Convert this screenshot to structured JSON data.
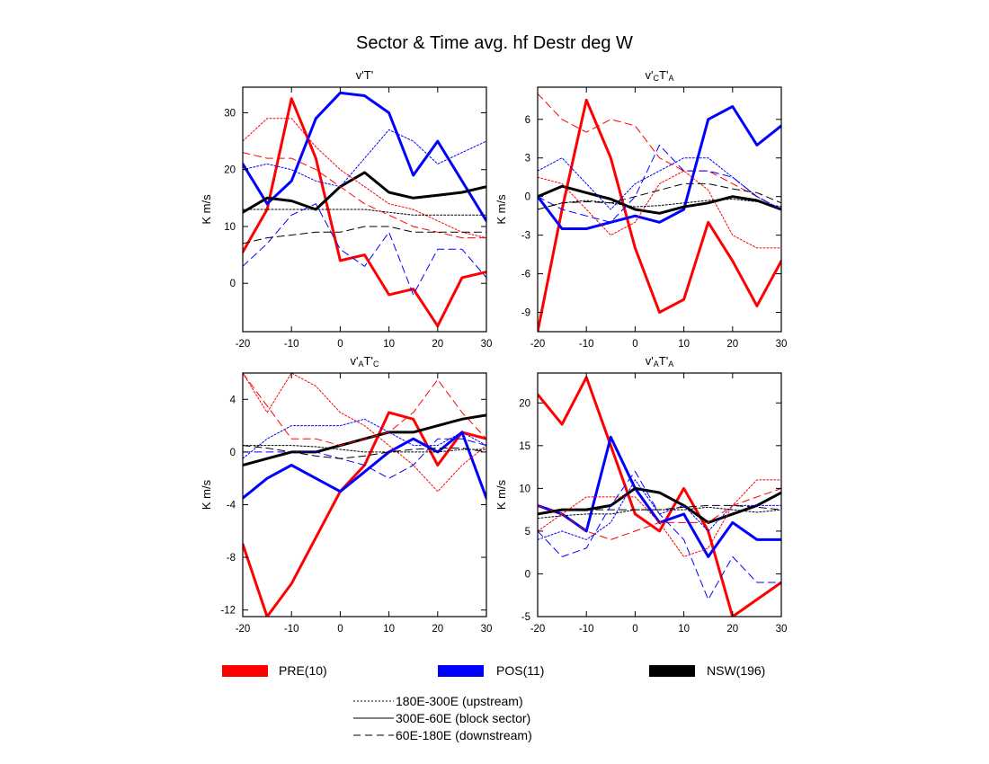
{
  "figure": {
    "title": "Sector & Time avg. hf Destr deg W",
    "legend": {
      "colors": [
        {
          "label": "PRE(10)",
          "color": "#ff0000"
        },
        {
          "label": "POS(11)",
          "color": "#0000ff"
        },
        {
          "label": "NSW(196)",
          "color": "#000000"
        }
      ],
      "styles": [
        {
          "label": "180E-300E (upstream)",
          "style": "dotted"
        },
        {
          "label": "300E-60E (block sector)",
          "style": "solid"
        },
        {
          "label": "60E-180E (downstream)",
          "style": "dashed"
        }
      ]
    }
  },
  "chart_data": [
    {
      "type": "line",
      "title": "v'T'",
      "title_parts": [
        {
          "t": "v'T'",
          "s": "n"
        }
      ],
      "xlabel": "",
      "ylabel": "K m/s",
      "xlim": [
        -20,
        30
      ],
      "ylim": [
        -8.5,
        34.5
      ],
      "xticks": [
        -20,
        -10,
        0,
        10,
        20,
        30
      ],
      "yticks": [
        0,
        10,
        20,
        30
      ],
      "grid": false,
      "x": [
        -20,
        -15,
        -10,
        -5,
        0,
        5,
        10,
        15,
        20,
        25,
        30
      ],
      "series": [
        {
          "color": "#ff0000",
          "style": "solid",
          "values": [
            5.5,
            13,
            32.5,
            22,
            4,
            5,
            -2,
            -1,
            -7.5,
            1,
            2
          ]
        },
        {
          "color": "#0000ff",
          "style": "solid",
          "values": [
            21,
            14,
            18,
            29,
            33.5,
            33,
            30,
            19,
            25,
            18,
            11
          ]
        },
        {
          "color": "#000000",
          "style": "solid",
          "values": [
            12.5,
            15,
            14.5,
            13,
            17,
            19.5,
            16,
            15,
            15.5,
            16,
            17
          ]
        },
        {
          "color": "#ff0000",
          "style": "dotted",
          "values": [
            25,
            29,
            29,
            24,
            20,
            17,
            14,
            13,
            11,
            9,
            8
          ]
        },
        {
          "color": "#0000ff",
          "style": "dotted",
          "values": [
            20,
            21,
            20,
            18,
            17,
            22,
            27,
            25,
            21,
            23,
            25
          ]
        },
        {
          "color": "#000000",
          "style": "dotted",
          "values": [
            13,
            13,
            13,
            13,
            13,
            13,
            12.5,
            12,
            12,
            12,
            12
          ]
        },
        {
          "color": "#ff0000",
          "style": "dashed",
          "values": [
            23,
            22,
            22,
            20,
            17,
            14,
            12,
            10,
            9,
            8,
            8
          ]
        },
        {
          "color": "#0000ff",
          "style": "dashed",
          "values": [
            3,
            7,
            12,
            14,
            6,
            3,
            9,
            -2,
            6,
            6,
            1
          ]
        },
        {
          "color": "#000000",
          "style": "dashed",
          "values": [
            7,
            8,
            8.5,
            9,
            9,
            10,
            10,
            9,
            9,
            9,
            9
          ]
        }
      ]
    },
    {
      "type": "line",
      "title": "v'CT'A",
      "title_parts": [
        {
          "t": "v'",
          "s": "n"
        },
        {
          "t": "C",
          "s": "sub"
        },
        {
          "t": "T'",
          "s": "n"
        },
        {
          "t": "A",
          "s": "sub"
        }
      ],
      "xlabel": "",
      "ylabel": "K m/s",
      "xlim": [
        -20,
        30
      ],
      "ylim": [
        -10.5,
        8.5
      ],
      "xticks": [
        -20,
        -10,
        0,
        10,
        20,
        30
      ],
      "yticks": [
        -9,
        -6,
        -3,
        0,
        3,
        6
      ],
      "grid": false,
      "x": [
        -20,
        -15,
        -10,
        -5,
        0,
        5,
        10,
        15,
        20,
        25,
        30
      ],
      "series": [
        {
          "color": "#ff0000",
          "style": "solid",
          "values": [
            -10.5,
            -1,
            7.5,
            3,
            -4,
            -9,
            -8,
            -2,
            -5,
            -8.5,
            -5
          ]
        },
        {
          "color": "#0000ff",
          "style": "solid",
          "values": [
            0,
            -2.5,
            -2.5,
            -2,
            -1.5,
            -2,
            -1,
            6,
            7,
            4,
            5.5
          ]
        },
        {
          "color": "#000000",
          "style": "solid",
          "values": [
            0,
            0.8,
            0.3,
            -0.2,
            -1,
            -1.3,
            -0.8,
            -0.5,
            0,
            -0.3,
            -1
          ]
        },
        {
          "color": "#ff0000",
          "style": "dotted",
          "values": [
            1.5,
            1,
            -1,
            -3,
            -2,
            1,
            2,
            0.5,
            -3,
            -4,
            -4
          ]
        },
        {
          "color": "#0000ff",
          "style": "dotted",
          "values": [
            2,
            3,
            1,
            -1,
            1,
            2,
            3,
            3,
            1.5,
            0,
            -1
          ]
        },
        {
          "color": "#000000",
          "style": "dotted",
          "values": [
            -1,
            -0.5,
            -0.3,
            -0.5,
            -0.8,
            -0.7,
            -0.5,
            -0.3,
            -0.2,
            -0.4,
            -0.8
          ]
        },
        {
          "color": "#ff0000",
          "style": "dashed",
          "values": [
            8,
            6,
            5,
            6,
            5.5,
            3,
            2,
            2,
            1,
            0,
            -1
          ]
        },
        {
          "color": "#0000ff",
          "style": "dashed",
          "values": [
            0,
            -1,
            -1.5,
            -2,
            0,
            4,
            2,
            2,
            1.5,
            0,
            -1
          ]
        },
        {
          "color": "#000000",
          "style": "dashed",
          "values": [
            -1,
            -0.5,
            -0.4,
            -0.5,
            0,
            0.5,
            1,
            1,
            0.6,
            0.3,
            -0.5
          ]
        }
      ]
    },
    {
      "type": "line",
      "title": "v'AT'C",
      "title_parts": [
        {
          "t": "v'",
          "s": "n"
        },
        {
          "t": "A",
          "s": "sub"
        },
        {
          "t": "T'",
          "s": "n"
        },
        {
          "t": "C",
          "s": "sub"
        }
      ],
      "xlabel": "",
      "ylabel": "K m/s",
      "xlim": [
        -20,
        30
      ],
      "ylim": [
        -12.5,
        6
      ],
      "xticks": [
        -20,
        -10,
        0,
        10,
        20,
        30
      ],
      "yticks": [
        -12,
        -8,
        -4,
        0,
        4
      ],
      "grid": false,
      "x": [
        -20,
        -15,
        -10,
        -5,
        0,
        5,
        10,
        15,
        20,
        25,
        30
      ],
      "series": [
        {
          "color": "#ff0000",
          "style": "solid",
          "values": [
            -7,
            -12.5,
            -10,
            -6.5,
            -3,
            -1,
            3,
            2.5,
            -1,
            1.5,
            1
          ]
        },
        {
          "color": "#0000ff",
          "style": "solid",
          "values": [
            -3.5,
            -2,
            -1,
            -2,
            -3,
            -1.5,
            0,
            1,
            0,
            1.5,
            -3.5
          ]
        },
        {
          "color": "#000000",
          "style": "solid",
          "values": [
            -1,
            -0.5,
            0,
            0,
            0.5,
            1,
            1.5,
            1.5,
            2,
            2.5,
            2.8
          ]
        },
        {
          "color": "#ff0000",
          "style": "dotted",
          "values": [
            6,
            3,
            6,
            5,
            3,
            2,
            0.5,
            -1,
            -3,
            -1,
            0.5
          ]
        },
        {
          "color": "#0000ff",
          "style": "dotted",
          "values": [
            -0.5,
            1,
            2,
            2,
            2,
            2.5,
            1.5,
            0.5,
            0.5,
            1.5,
            0.5
          ]
        },
        {
          "color": "#000000",
          "style": "dotted",
          "values": [
            0.5,
            0.5,
            0.5,
            0.4,
            0.2,
            0,
            0,
            0,
            0,
            0.2,
            0.2
          ]
        },
        {
          "color": "#ff0000",
          "style": "dashed",
          "values": [
            6,
            3.5,
            1,
            1,
            0.5,
            1,
            1.5,
            3,
            5.5,
            3,
            1
          ]
        },
        {
          "color": "#0000ff",
          "style": "dashed",
          "values": [
            0,
            0,
            0,
            0,
            -0.5,
            -1,
            -2,
            -1,
            1,
            1,
            0.5
          ]
        },
        {
          "color": "#000000",
          "style": "dashed",
          "values": [
            0.5,
            0.3,
            0,
            -0.3,
            -0.5,
            -0.3,
            0,
            0.2,
            0.3,
            0.3,
            0
          ]
        }
      ]
    },
    {
      "type": "line",
      "title": "v'AT'A",
      "title_parts": [
        {
          "t": "v'",
          "s": "n"
        },
        {
          "t": "A",
          "s": "sub"
        },
        {
          "t": "T'",
          "s": "n"
        },
        {
          "t": "A",
          "s": "sub"
        }
      ],
      "xlabel": "",
      "ylabel": "K m/s",
      "xlim": [
        -20,
        30
      ],
      "ylim": [
        -5,
        23.5
      ],
      "xticks": [
        -20,
        -10,
        0,
        10,
        20,
        30
      ],
      "yticks": [
        -5,
        0,
        5,
        10,
        15,
        20
      ],
      "grid": false,
      "x": [
        -20,
        -15,
        -10,
        -5,
        0,
        5,
        10,
        15,
        20,
        25,
        30
      ],
      "series": [
        {
          "color": "#ff0000",
          "style": "solid",
          "values": [
            21,
            17.5,
            23,
            15,
            7,
            5,
            10,
            5,
            -5,
            -3,
            -1
          ]
        },
        {
          "color": "#0000ff",
          "style": "solid",
          "values": [
            8,
            7,
            5,
            16,
            10,
            6,
            7,
            2,
            6,
            4,
            4
          ]
        },
        {
          "color": "#000000",
          "style": "solid",
          "values": [
            7,
            7.5,
            7.5,
            8,
            10,
            9.5,
            8,
            6,
            7,
            8,
            9.5
          ]
        },
        {
          "color": "#ff0000",
          "style": "dotted",
          "values": [
            5,
            7,
            9,
            9,
            9,
            6,
            2,
            3,
            8,
            11,
            11
          ]
        },
        {
          "color": "#0000ff",
          "style": "dotted",
          "values": [
            4,
            5,
            4,
            6,
            11,
            7,
            8,
            5,
            8,
            8,
            8
          ]
        },
        {
          "color": "#000000",
          "style": "dotted",
          "values": [
            6.5,
            6.8,
            7,
            7,
            7.5,
            7.5,
            7.5,
            7.8,
            7.5,
            7.2,
            7.5
          ]
        },
        {
          "color": "#ff0000",
          "style": "dashed",
          "values": [
            8,
            7,
            5,
            4,
            5,
            6,
            6,
            6,
            8,
            9,
            10
          ]
        },
        {
          "color": "#0000ff",
          "style": "dashed",
          "values": [
            5,
            2,
            3,
            8,
            12,
            7,
            4,
            -3,
            2,
            -1,
            -1
          ]
        },
        {
          "color": "#000000",
          "style": "dashed",
          "values": [
            7,
            7.5,
            7.5,
            7.5,
            7.5,
            7.5,
            7.8,
            8,
            8,
            7.8,
            7.5
          ]
        }
      ]
    }
  ]
}
